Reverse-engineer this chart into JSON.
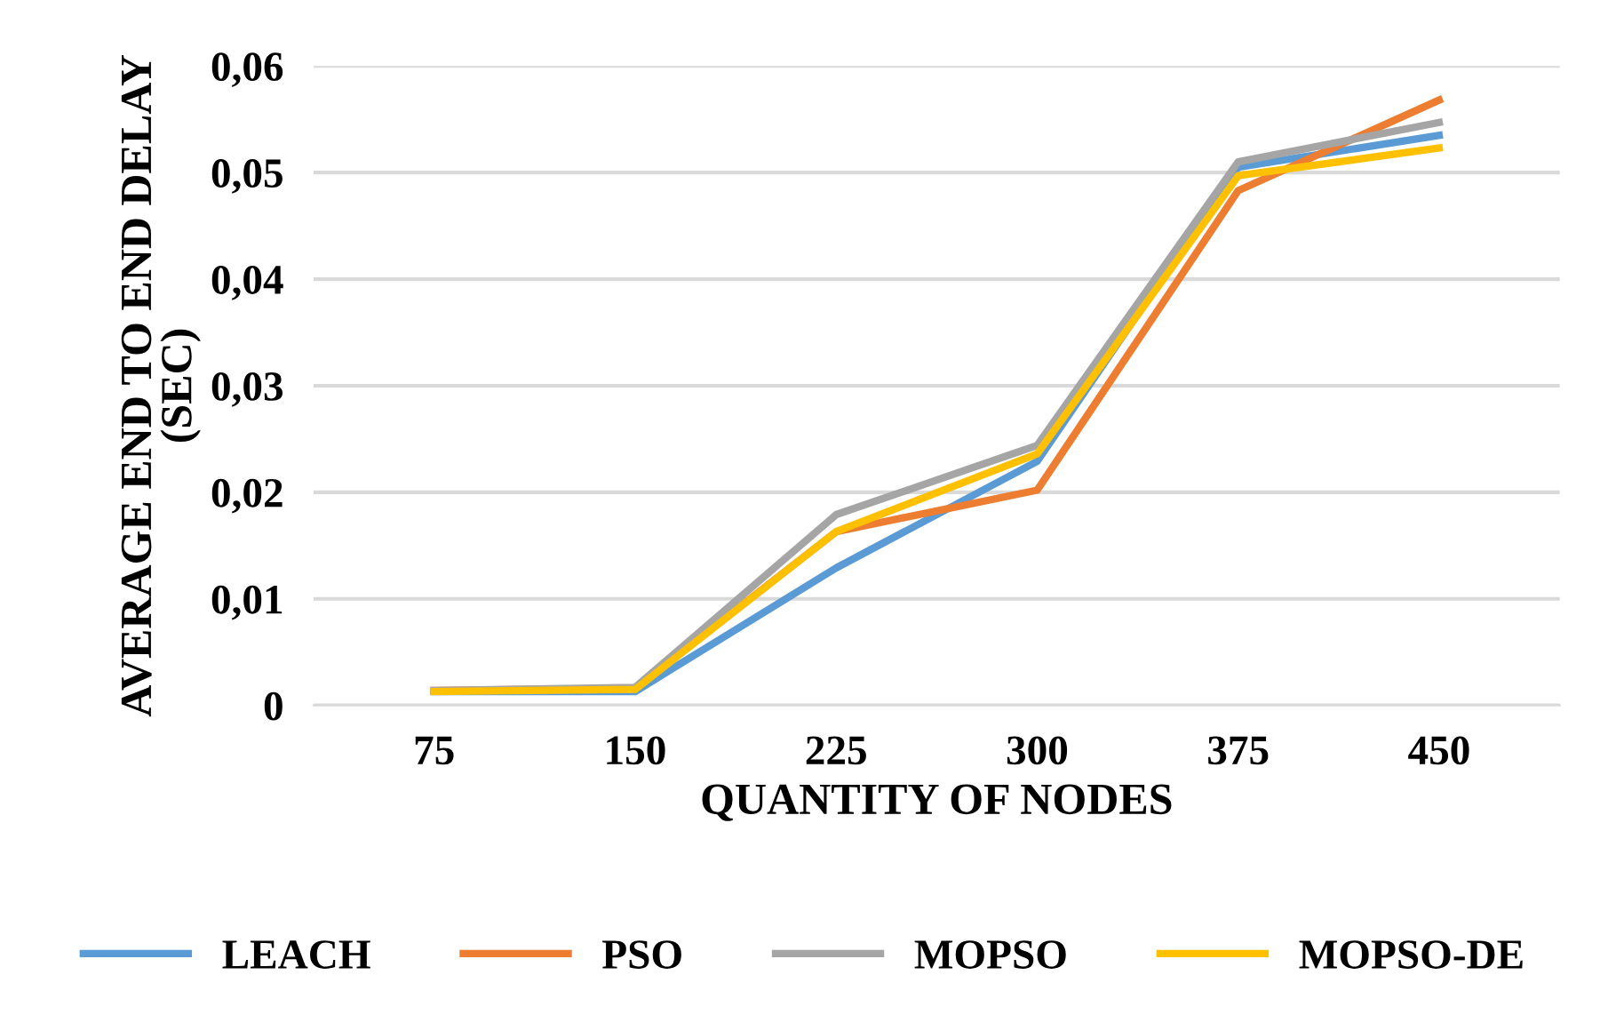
{
  "chart_data": {
    "type": "line",
    "xlabel": "QUANTITY OF NODES",
    "ylabel": "AVERAGE END TO END DELAY\n(SEC)",
    "categories": [
      "75",
      "150",
      "225",
      "300",
      "375",
      "450"
    ],
    "series": [
      {
        "name": "LEACH",
        "color": "#5b9bd5",
        "values": [
          0.0013,
          0.0013,
          0.0129,
          0.0229,
          0.0505,
          0.0535
        ]
      },
      {
        "name": "PSO",
        "color": "#ed7d31",
        "values": [
          0.0014,
          0.0016,
          0.0163,
          0.0202,
          0.0483,
          0.0568
        ]
      },
      {
        "name": "MOPSO",
        "color": "#a5a5a5",
        "values": [
          0.0014,
          0.0017,
          0.0179,
          0.0244,
          0.051,
          0.0547
        ]
      },
      {
        "name": "MOPSO-DE",
        "color": "#ffc000",
        "values": [
          0.0013,
          0.0015,
          0.0163,
          0.0236,
          0.0497,
          0.0523
        ]
      }
    ],
    "ylim": [
      0,
      0.06
    ],
    "yticks": [
      {
        "value": 0,
        "label": "0"
      },
      {
        "value": 0.01,
        "label": "0,01"
      },
      {
        "value": 0.02,
        "label": "0,02"
      },
      {
        "value": 0.03,
        "label": "0,03"
      },
      {
        "value": 0.04,
        "label": "0,04"
      },
      {
        "value": 0.05,
        "label": "0,05"
      },
      {
        "value": 0.06,
        "label": "0,06"
      }
    ],
    "grid": "y",
    "legend": "bottom",
    "marker": "none",
    "line_style": "solid"
  }
}
